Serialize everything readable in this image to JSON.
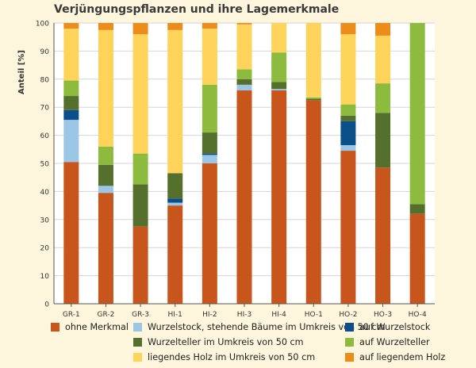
{
  "chart_data": {
    "type": "bar",
    "stacked": true,
    "title": "Verjüngungspflanzen und ihre Lagemerkmale",
    "ylabel": "Anteil [%]",
    "xlabel": "",
    "ylim": [
      0,
      100
    ],
    "yticks": [
      0,
      10,
      20,
      30,
      40,
      50,
      60,
      70,
      80,
      90,
      100
    ],
    "grid": true,
    "legend_position": "bottom",
    "categories": [
      "GR-1",
      "GR-2",
      "GR-3",
      "HI-1",
      "HI-2",
      "HI-3",
      "HI-4",
      "HO-1",
      "HO-2",
      "HO-3",
      "HO-4"
    ],
    "series": [
      {
        "name": "ohne Merkmal",
        "color": "#c8561c",
        "values": [
          50.5,
          39.5,
          27.5,
          35,
          50,
          76,
          76,
          72.5,
          54.5,
          48.5,
          32
        ]
      },
      {
        "name": "Wurzelstock, stehende Bäume im Umkreis von 50 cm",
        "color": "#9cc6e6",
        "values": [
          15,
          2.5,
          0,
          1,
          3,
          2,
          0.5,
          0,
          2,
          0,
          0
        ]
      },
      {
        "name": "auf Wurzelstock",
        "color": "#0b4f8a",
        "values": [
          3.5,
          0,
          0,
          1.5,
          0.5,
          0,
          0,
          0,
          8.5,
          0,
          0
        ]
      },
      {
        "name": "Wurzelteller im Umkreis von 50 cm",
        "color": "#55702c",
        "values": [
          5,
          7.5,
          15,
          9,
          7.5,
          2,
          2.5,
          0.5,
          2,
          19.5,
          3.5
        ]
      },
      {
        "name": "auf Wurzelteller",
        "color": "#8dbb3e",
        "values": [
          5.5,
          6.5,
          11,
          0,
          17,
          3.5,
          10.5,
          0.5,
          4,
          10.5,
          64.5
        ]
      },
      {
        "name": "liegendes Holz im Umkreis von 50 cm",
        "color": "#fdd35a",
        "values": [
          18.5,
          41.5,
          42.5,
          51,
          20,
          16,
          10.5,
          26.5,
          25,
          17,
          0
        ]
      },
      {
        "name": "auf liegendem Holz",
        "color": "#ee8c1a",
        "values": [
          2,
          2.5,
          4,
          2.5,
          2,
          0.5,
          0,
          0,
          4,
          4.5,
          0
        ]
      }
    ]
  }
}
